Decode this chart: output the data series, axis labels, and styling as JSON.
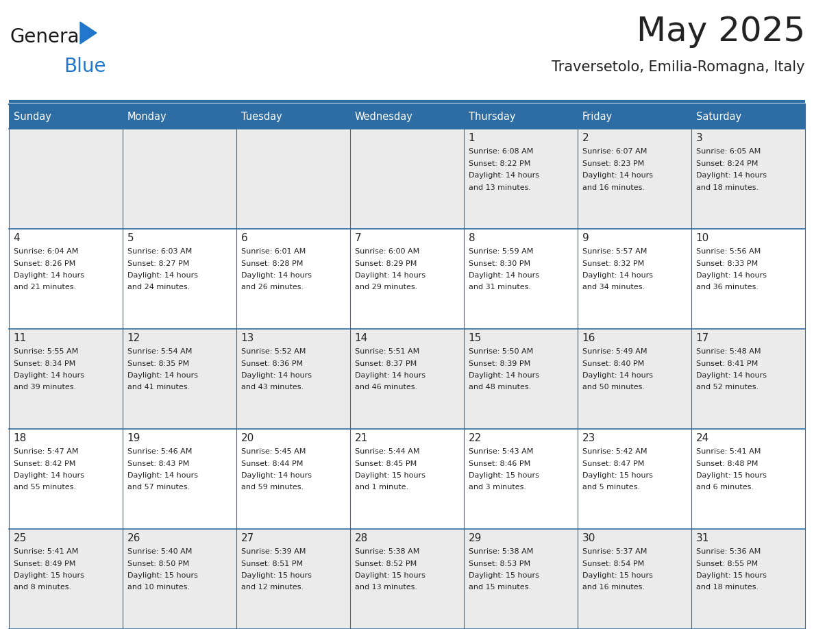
{
  "title": "May 2025",
  "subtitle": "Traversetolo, Emilia-Romagna, Italy",
  "days_of_week": [
    "Sunday",
    "Monday",
    "Tuesday",
    "Wednesday",
    "Thursday",
    "Friday",
    "Saturday"
  ],
  "header_bg": "#2e6da4",
  "header_text_color": "#ffffff",
  "cell_bg_odd": "#ebebeb",
  "cell_bg_even": "#ffffff",
  "border_color": "#2e6da4",
  "text_color": "#222222",
  "logo_general_color": "#1a1a1a",
  "logo_blue_color": "#2277cc",
  "weeks": [
    [
      {
        "day": null,
        "sunrise": null,
        "sunset": null,
        "daylight": null
      },
      {
        "day": null,
        "sunrise": null,
        "sunset": null,
        "daylight": null
      },
      {
        "day": null,
        "sunrise": null,
        "sunset": null,
        "daylight": null
      },
      {
        "day": null,
        "sunrise": null,
        "sunset": null,
        "daylight": null
      },
      {
        "day": 1,
        "sunrise": "6:08 AM",
        "sunset": "8:22 PM",
        "daylight": "14 hours and 13 minutes."
      },
      {
        "day": 2,
        "sunrise": "6:07 AM",
        "sunset": "8:23 PM",
        "daylight": "14 hours and 16 minutes."
      },
      {
        "day": 3,
        "sunrise": "6:05 AM",
        "sunset": "8:24 PM",
        "daylight": "14 hours and 18 minutes."
      }
    ],
    [
      {
        "day": 4,
        "sunrise": "6:04 AM",
        "sunset": "8:26 PM",
        "daylight": "14 hours and 21 minutes."
      },
      {
        "day": 5,
        "sunrise": "6:03 AM",
        "sunset": "8:27 PM",
        "daylight": "14 hours and 24 minutes."
      },
      {
        "day": 6,
        "sunrise": "6:01 AM",
        "sunset": "8:28 PM",
        "daylight": "14 hours and 26 minutes."
      },
      {
        "day": 7,
        "sunrise": "6:00 AM",
        "sunset": "8:29 PM",
        "daylight": "14 hours and 29 minutes."
      },
      {
        "day": 8,
        "sunrise": "5:59 AM",
        "sunset": "8:30 PM",
        "daylight": "14 hours and 31 minutes."
      },
      {
        "day": 9,
        "sunrise": "5:57 AM",
        "sunset": "8:32 PM",
        "daylight": "14 hours and 34 minutes."
      },
      {
        "day": 10,
        "sunrise": "5:56 AM",
        "sunset": "8:33 PM",
        "daylight": "14 hours and 36 minutes."
      }
    ],
    [
      {
        "day": 11,
        "sunrise": "5:55 AM",
        "sunset": "8:34 PM",
        "daylight": "14 hours and 39 minutes."
      },
      {
        "day": 12,
        "sunrise": "5:54 AM",
        "sunset": "8:35 PM",
        "daylight": "14 hours and 41 minutes."
      },
      {
        "day": 13,
        "sunrise": "5:52 AM",
        "sunset": "8:36 PM",
        "daylight": "14 hours and 43 minutes."
      },
      {
        "day": 14,
        "sunrise": "5:51 AM",
        "sunset": "8:37 PM",
        "daylight": "14 hours and 46 minutes."
      },
      {
        "day": 15,
        "sunrise": "5:50 AM",
        "sunset": "8:39 PM",
        "daylight": "14 hours and 48 minutes."
      },
      {
        "day": 16,
        "sunrise": "5:49 AM",
        "sunset": "8:40 PM",
        "daylight": "14 hours and 50 minutes."
      },
      {
        "day": 17,
        "sunrise": "5:48 AM",
        "sunset": "8:41 PM",
        "daylight": "14 hours and 52 minutes."
      }
    ],
    [
      {
        "day": 18,
        "sunrise": "5:47 AM",
        "sunset": "8:42 PM",
        "daylight": "14 hours and 55 minutes."
      },
      {
        "day": 19,
        "sunrise": "5:46 AM",
        "sunset": "8:43 PM",
        "daylight": "14 hours and 57 minutes."
      },
      {
        "day": 20,
        "sunrise": "5:45 AM",
        "sunset": "8:44 PM",
        "daylight": "14 hours and 59 minutes."
      },
      {
        "day": 21,
        "sunrise": "5:44 AM",
        "sunset": "8:45 PM",
        "daylight": "15 hours and 1 minute."
      },
      {
        "day": 22,
        "sunrise": "5:43 AM",
        "sunset": "8:46 PM",
        "daylight": "15 hours and 3 minutes."
      },
      {
        "day": 23,
        "sunrise": "5:42 AM",
        "sunset": "8:47 PM",
        "daylight": "15 hours and 5 minutes."
      },
      {
        "day": 24,
        "sunrise": "5:41 AM",
        "sunset": "8:48 PM",
        "daylight": "15 hours and 6 minutes."
      }
    ],
    [
      {
        "day": 25,
        "sunrise": "5:41 AM",
        "sunset": "8:49 PM",
        "daylight": "15 hours and 8 minutes."
      },
      {
        "day": 26,
        "sunrise": "5:40 AM",
        "sunset": "8:50 PM",
        "daylight": "15 hours and 10 minutes."
      },
      {
        "day": 27,
        "sunrise": "5:39 AM",
        "sunset": "8:51 PM",
        "daylight": "15 hours and 12 minutes."
      },
      {
        "day": 28,
        "sunrise": "5:38 AM",
        "sunset": "8:52 PM",
        "daylight": "15 hours and 13 minutes."
      },
      {
        "day": 29,
        "sunrise": "5:38 AM",
        "sunset": "8:53 PM",
        "daylight": "15 hours and 15 minutes."
      },
      {
        "day": 30,
        "sunrise": "5:37 AM",
        "sunset": "8:54 PM",
        "daylight": "15 hours and 16 minutes."
      },
      {
        "day": 31,
        "sunrise": "5:36 AM",
        "sunset": "8:55 PM",
        "daylight": "15 hours and 18 minutes."
      }
    ]
  ]
}
